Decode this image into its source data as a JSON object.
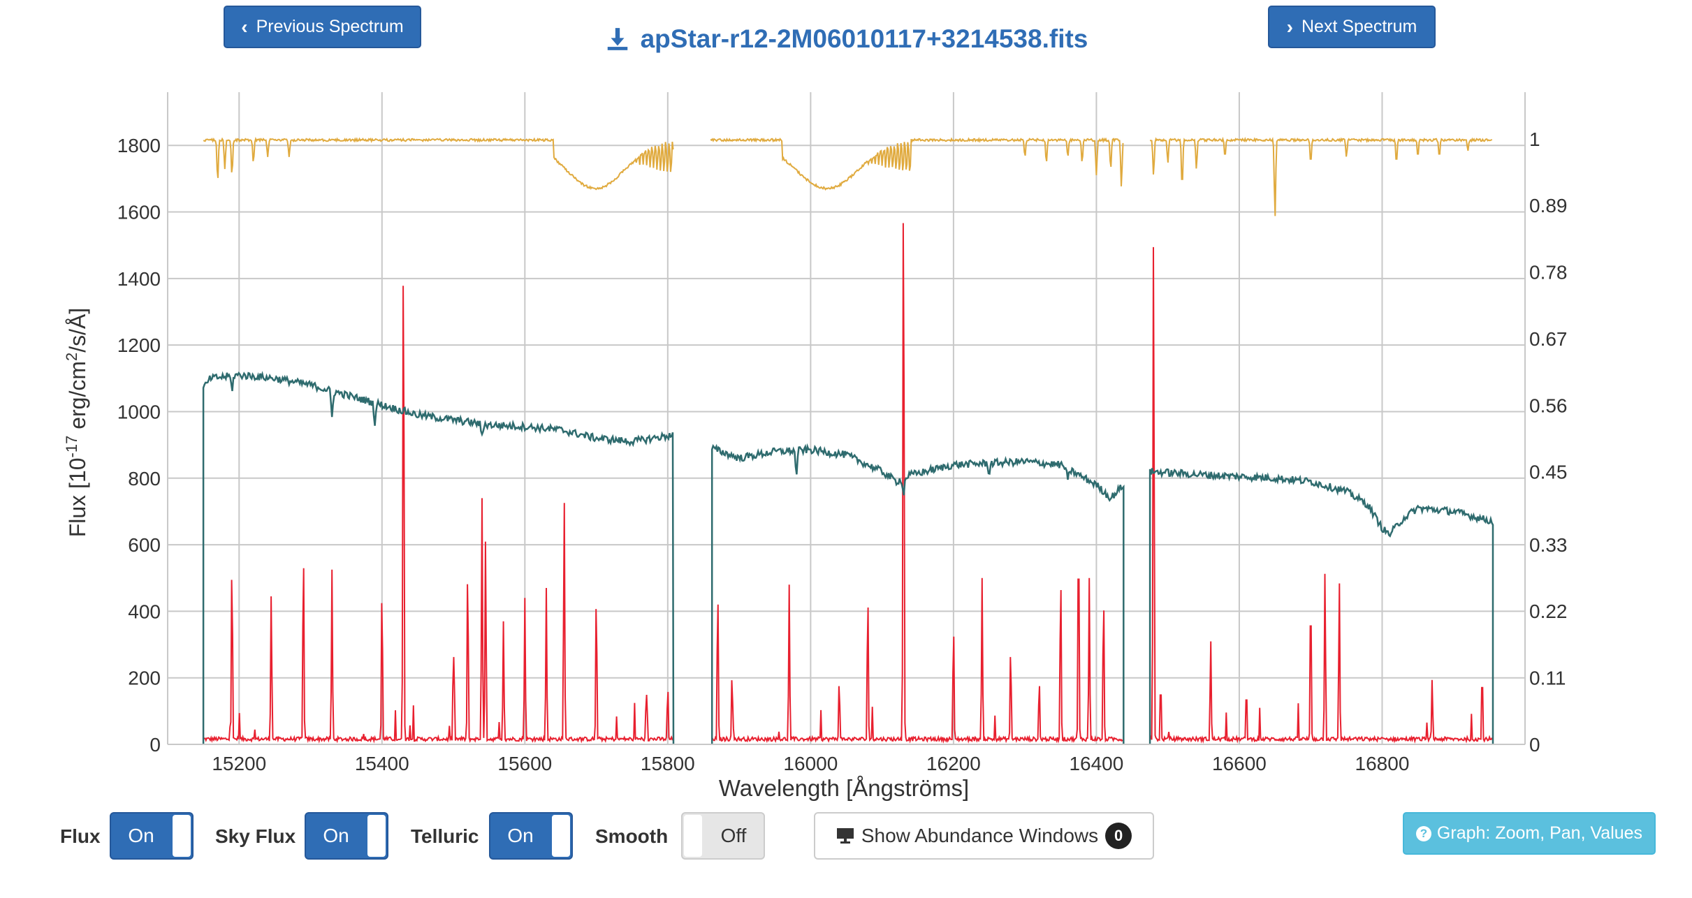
{
  "header": {
    "prev_label": "Previous Spectrum",
    "next_label": "Next Spectrum",
    "filename": "apStar-r12-2M06010117+3214538.fits"
  },
  "controls": {
    "flux_label": "Flux",
    "flux_state": "On",
    "sky_label": "Sky Flux",
    "sky_state": "On",
    "telluric_label": "Telluric",
    "telluric_state": "On",
    "smooth_label": "Smooth",
    "smooth_state": "Off",
    "abundance_label": "Show Abundance Windows",
    "abundance_count": "0",
    "graph_help_label": "Graph: Zoom, Pan, Values"
  },
  "colors": {
    "flux": "#2e6b6e",
    "sky": "#e8202f",
    "telluric": "#e0aa3e",
    "grid": "#c8c8c8",
    "primary": "#2f6db5",
    "info": "#5bc0de"
  },
  "chart_data": {
    "type": "line",
    "xlabel": "Wavelength [Ångströms]",
    "ylabel_left": "Flux [10^-17 erg/cm^2/s/Å]",
    "xlim": [
      15100,
      17000
    ],
    "ylim_left": [
      0,
      1960
    ],
    "ylim_right": [
      0,
      1.077
    ],
    "x_ticks": [
      "15200",
      "15400",
      "15600",
      "15800",
      "16000",
      "16200",
      "16400",
      "16600",
      "16800"
    ],
    "y_ticks_left": [
      "0",
      "200",
      "400",
      "600",
      "800",
      "1000",
      "1200",
      "1400",
      "1600",
      "1800"
    ],
    "y_ticks_right": [
      "0",
      "0.11",
      "0.22",
      "0.33",
      "0.45",
      "0.56",
      "0.67",
      "0.78",
      "0.89",
      "1"
    ],
    "grid": true,
    "chips": [
      [
        15150,
        15808
      ],
      [
        15862,
        16438
      ],
      [
        16475,
        16955
      ]
    ],
    "series": [
      {
        "name": "Flux",
        "color": "#2e6b6e",
        "axis": "left",
        "points": [
          [
            15150,
            1070
          ],
          [
            15160,
            1100
          ],
          [
            15200,
            1110
          ],
          [
            15250,
            1100
          ],
          [
            15300,
            1080
          ],
          [
            15350,
            1050
          ],
          [
            15400,
            1020
          ],
          [
            15450,
            990
          ],
          [
            15500,
            975
          ],
          [
            15550,
            960
          ],
          [
            15600,
            955
          ],
          [
            15650,
            945
          ],
          [
            15700,
            920
          ],
          [
            15750,
            910
          ],
          [
            15808,
            930
          ],
          [
            15862,
            890
          ],
          [
            15900,
            860
          ],
          [
            15950,
            880
          ],
          [
            16000,
            885
          ],
          [
            16050,
            870
          ],
          [
            16100,
            820
          ],
          [
            16120,
            790
          ],
          [
            16140,
            810
          ],
          [
            16200,
            840
          ],
          [
            16250,
            845
          ],
          [
            16300,
            850
          ],
          [
            16350,
            840
          ],
          [
            16400,
            780
          ],
          [
            16420,
            740
          ],
          [
            16438,
            780
          ],
          [
            16475,
            820
          ],
          [
            16550,
            810
          ],
          [
            16600,
            805
          ],
          [
            16650,
            800
          ],
          [
            16700,
            790
          ],
          [
            16750,
            760
          ],
          [
            16780,
            720
          ],
          [
            16800,
            650
          ],
          [
            16810,
            630
          ],
          [
            16830,
            680
          ],
          [
            16850,
            710
          ],
          [
            16900,
            700
          ],
          [
            16955,
            670
          ]
        ],
        "features": [
          [
            15190,
            -40
          ],
          [
            15330,
            -80
          ],
          [
            15390,
            -60
          ],
          [
            15540,
            -40
          ],
          [
            15980,
            -70
          ],
          [
            16130,
            -50
          ],
          [
            16250,
            -30
          ],
          [
            16360,
            -40
          ]
        ]
      },
      {
        "name": "Sky Flux",
        "color": "#e8202f",
        "axis": "left",
        "lines": [
          [
            15190,
            565
          ],
          [
            15245,
            460
          ],
          [
            15290,
            605
          ],
          [
            15330,
            525
          ],
          [
            15400,
            485
          ],
          [
            15430,
            1575
          ],
          [
            15500,
            300
          ],
          [
            15520,
            550
          ],
          [
            15540,
            740
          ],
          [
            15545,
            630
          ],
          [
            15570,
            370
          ],
          [
            15600,
            440
          ],
          [
            15630,
            470
          ],
          [
            15655,
            750
          ],
          [
            15700,
            465
          ],
          [
            15770,
            170
          ],
          [
            15800,
            180
          ],
          [
            15870,
            480
          ],
          [
            15890,
            220
          ],
          [
            15970,
            480
          ],
          [
            16040,
            200
          ],
          [
            16080,
            470
          ],
          [
            16130,
            1790
          ],
          [
            16200,
            370
          ],
          [
            16240,
            500
          ],
          [
            16280,
            300
          ],
          [
            16320,
            200
          ],
          [
            16350,
            530
          ],
          [
            16375,
            670
          ],
          [
            16390,
            500
          ],
          [
            16410,
            460
          ],
          [
            16480,
            1545
          ],
          [
            16490,
            200
          ],
          [
            16560,
            320
          ],
          [
            16610,
            180
          ],
          [
            16700,
            480
          ],
          [
            16720,
            530
          ],
          [
            16740,
            500
          ],
          [
            16870,
            200
          ],
          [
            16940,
            230
          ]
        ],
        "floor": 10
      },
      {
        "name": "Telluric",
        "color": "#e0aa3e",
        "axis": "right",
        "base": 1.0,
        "segments": [
          [
            15150,
            15808
          ],
          [
            15860,
            16438
          ],
          [
            16475,
            16955
          ]
        ],
        "bands": [
          [
            15640,
            15808,
            0.92
          ],
          [
            15960,
            16140,
            0.92
          ]
        ],
        "dips": [
          [
            15170,
            0.93
          ],
          [
            15180,
            0.95
          ],
          [
            15190,
            0.94
          ],
          [
            15220,
            0.96
          ],
          [
            15240,
            0.97
          ],
          [
            15270,
            0.97
          ],
          [
            16300,
            0.97
          ],
          [
            16330,
            0.96
          ],
          [
            16360,
            0.97
          ],
          [
            16380,
            0.96
          ],
          [
            16400,
            0.94
          ],
          [
            16420,
            0.95
          ],
          [
            16435,
            0.92
          ],
          [
            16480,
            0.94
          ],
          [
            16500,
            0.96
          ],
          [
            16520,
            0.92
          ],
          [
            16540,
            0.95
          ],
          [
            16580,
            0.97
          ],
          [
            16650,
            0.87
          ],
          [
            16700,
            0.96
          ],
          [
            16750,
            0.97
          ],
          [
            16820,
            0.96
          ],
          [
            16850,
            0.97
          ],
          [
            16880,
            0.97
          ],
          [
            16920,
            0.98
          ]
        ]
      }
    ]
  }
}
